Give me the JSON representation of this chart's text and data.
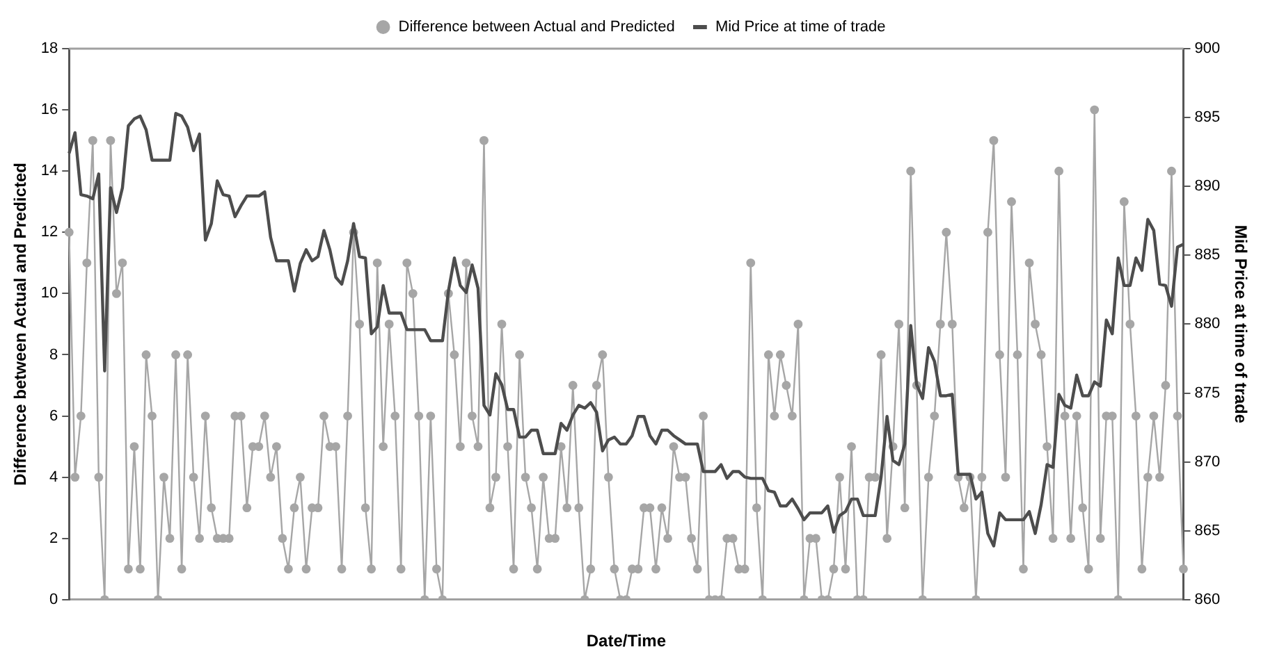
{
  "chart_data": {
    "type": "line",
    "xlabel": "Date/Time",
    "ylabel": "Difference between Actual and Predicted",
    "y2label": "Mid Price at time of trade",
    "categories": [
      null,
      null,
      null,
      null,
      null,
      null,
      null,
      null,
      null,
      null,
      null,
      null,
      null,
      null,
      null,
      null,
      null,
      null,
      null,
      null,
      null,
      null,
      null,
      null,
      null,
      null,
      null,
      null,
      null,
      null,
      null,
      null,
      null,
      null,
      null,
      null,
      null,
      null,
      null,
      null,
      null,
      null,
      null,
      null,
      null,
      null,
      null,
      null,
      null,
      null,
      null,
      null,
      null,
      null,
      null,
      null,
      null,
      null,
      null,
      null,
      null,
      null,
      null,
      null,
      null,
      null,
      null,
      null,
      null,
      null,
      null,
      null,
      null,
      null,
      null,
      null,
      null,
      null,
      null,
      null,
      null,
      null,
      null,
      null,
      null,
      null,
      null,
      null,
      null,
      null,
      null,
      null,
      null,
      null,
      null,
      null,
      null,
      null,
      null,
      null,
      null,
      null,
      null,
      null,
      null,
      null,
      null,
      null,
      null,
      null,
      null,
      null,
      null,
      null,
      null,
      null,
      null,
      null,
      null,
      null,
      null,
      null,
      null,
      null,
      null,
      null,
      null,
      null,
      null,
      null,
      null,
      null,
      null,
      null,
      null,
      null,
      null,
      null,
      null,
      null,
      null,
      null,
      null,
      null,
      null,
      null,
      null,
      null,
      null,
      null,
      null,
      null,
      null,
      null,
      null,
      null,
      null,
      null,
      null,
      null,
      null,
      null,
      null,
      null,
      null,
      null,
      null,
      null,
      null,
      null,
      null,
      null,
      null,
      null,
      null,
      null,
      null,
      null,
      null,
      null,
      null,
      null,
      null,
      null,
      null,
      null,
      null,
      null,
      null
    ],
    "series": [
      {
        "name": "Difference between Actual and Predicted",
        "color": "#a6a6a6",
        "marker": "circle",
        "values": [
          12,
          4,
          6,
          11,
          15,
          4,
          0,
          15,
          10,
          11,
          1,
          5,
          1,
          8,
          6,
          0,
          4,
          2,
          8,
          1,
          8,
          4,
          2,
          6,
          3,
          2,
          2,
          2,
          6,
          6,
          3,
          5,
          5,
          6,
          4,
          5,
          2,
          1,
          3,
          4,
          1,
          3,
          3,
          6,
          5,
          5,
          1,
          6,
          12,
          9,
          3,
          1,
          11,
          5,
          9,
          6,
          1,
          11,
          10,
          6,
          0,
          6,
          1,
          0,
          10,
          8,
          5,
          11,
          6,
          5,
          15,
          3,
          4,
          9,
          5,
          1,
          8,
          4,
          3,
          1,
          4,
          2,
          2,
          5,
          3,
          7,
          3,
          0,
          1,
          7,
          8,
          4,
          1,
          0,
          0,
          1,
          1,
          3,
          3,
          1,
          3,
          2,
          5,
          4,
          4,
          2,
          1,
          6,
          0,
          0,
          0,
          2,
          2,
          1,
          1,
          11,
          3,
          0,
          8,
          6,
          8,
          7,
          6,
          9,
          0,
          2,
          2,
          0,
          0,
          1,
          4,
          1,
          5,
          0,
          0,
          4,
          4,
          8,
          2,
          5,
          9,
          3,
          14,
          7,
          0,
          4,
          6,
          9,
          12,
          9,
          4,
          3,
          4,
          0,
          4,
          12,
          15,
          8,
          4,
          13,
          8,
          1,
          11,
          9,
          8,
          5,
          2,
          14,
          6,
          2,
          6,
          3,
          1,
          16,
          2,
          6,
          6,
          0,
          13,
          9,
          6,
          1,
          4,
          6,
          4,
          7,
          14,
          6,
          1
        ]
      },
      {
        "name": "Mid Price at time of trade",
        "color": "#4d4d4d",
        "marker": "none",
        "axis": "y2",
        "values": [
          892.4,
          893.9,
          889.4,
          889.3,
          889.1,
          890.9,
          876.6,
          889.9,
          888.1,
          889.9,
          894.4,
          894.9,
          895.1,
          894.1,
          891.9,
          891.9,
          891.9,
          891.9,
          895.3,
          895.1,
          894.3,
          892.6,
          893.8,
          886.1,
          887.3,
          890.4,
          889.4,
          889.3,
          887.8,
          888.6,
          889.3,
          889.3,
          889.3,
          889.6,
          886.3,
          884.6,
          884.6,
          884.6,
          882.4,
          884.4,
          885.4,
          884.6,
          884.9,
          886.8,
          885.4,
          883.4,
          882.9,
          884.6,
          887.3,
          884.9,
          884.8,
          879.3,
          879.8,
          882.8,
          880.8,
          880.8,
          880.8,
          879.6,
          879.6,
          879.6,
          879.6,
          878.8,
          878.8,
          878.8,
          882.4,
          884.8,
          882.8,
          882.3,
          884.3,
          882.6,
          874.1,
          873.4,
          876.4,
          875.6,
          873.8,
          873.8,
          871.8,
          871.8,
          872.3,
          872.3,
          870.6,
          870.6,
          870.6,
          872.8,
          872.3,
          873.4,
          874.1,
          873.9,
          874.3,
          873.6,
          870.8,
          871.6,
          871.8,
          871.3,
          871.3,
          871.9,
          873.3,
          873.3,
          871.9,
          871.3,
          872.3,
          872.3,
          871.9,
          871.6,
          871.3,
          871.3,
          871.3,
          869.3,
          869.3,
          869.3,
          869.8,
          868.8,
          869.3,
          869.3,
          868.9,
          868.8,
          868.8,
          868.8,
          867.9,
          867.8,
          866.8,
          866.8,
          867.3,
          866.6,
          865.8,
          866.3,
          866.3,
          866.3,
          866.8,
          864.9,
          866.1,
          866.4,
          867.3,
          867.3,
          866.1,
          866.1,
          866.1,
          868.9,
          873.3,
          870.1,
          869.8,
          871.3,
          879.9,
          875.6,
          874.6,
          878.3,
          877.3,
          874.8,
          874.8,
          874.9,
          869.1,
          869.1,
          869.1,
          867.3,
          867.8,
          864.8,
          863.9,
          866.3,
          865.8,
          865.8,
          865.8,
          865.8,
          866.4,
          864.8,
          866.9,
          869.8,
          869.6,
          874.9,
          874.1,
          873.9,
          876.3,
          874.8,
          874.8,
          875.8,
          875.5,
          880.3,
          879.3,
          884.8,
          882.8,
          882.8,
          884.8,
          883.9,
          887.6,
          886.8,
          882.9,
          882.8,
          881.3,
          885.6,
          885.8
        ]
      }
    ],
    "ylim": [
      0,
      18
    ],
    "yticks": [
      0,
      2,
      4,
      6,
      8,
      10,
      12,
      14,
      16,
      18
    ],
    "y2lim": [
      860,
      900
    ],
    "y2ticks": [
      860,
      865,
      870,
      875,
      880,
      885,
      890,
      895,
      900
    ],
    "grid": false,
    "legend": "top",
    "line_style": "solid"
  }
}
